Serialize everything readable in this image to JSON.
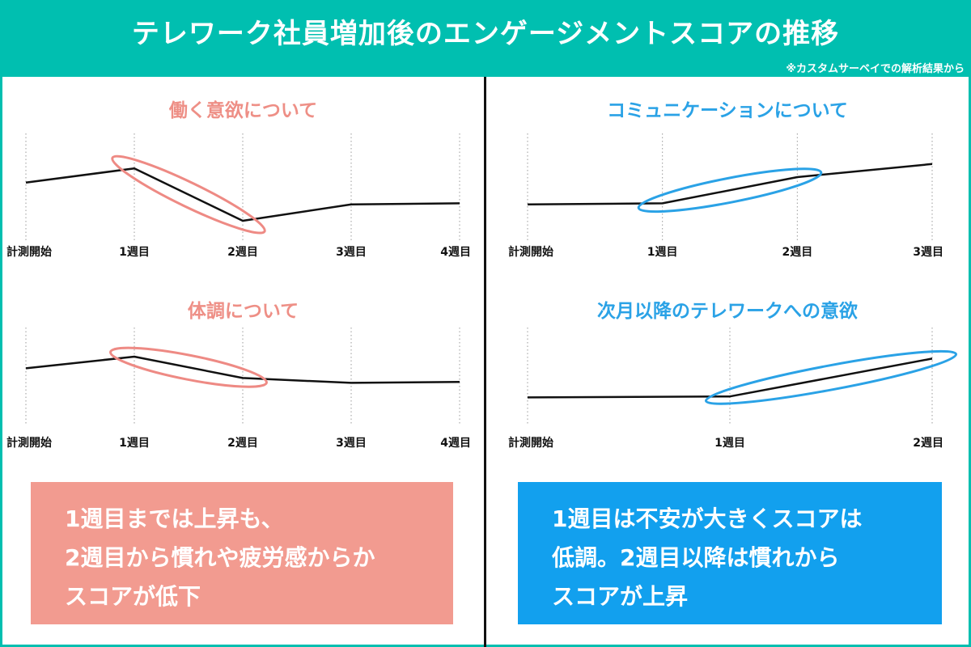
{
  "header": {
    "title": "テレワーク社員増加後のエンゲージメントスコアの推移",
    "note": "※カスタムサーベイでの解析結果から"
  },
  "colors": {
    "teal": "#00bfb0",
    "pink_title": "#ee8f86",
    "pink_box": "#f29b90",
    "pink_ellipse": "#ee8a84",
    "blue_title": "#2aa2e6",
    "blue_box": "#12a0ee",
    "blue_ellipse": "#2aa2e6",
    "line": "#111111"
  },
  "chart_data": [
    {
      "type": "line",
      "title": "働く意欲について",
      "categories": [
        "計測開始",
        "1週目",
        "2週目",
        "3週目",
        "4週目"
      ],
      "values": [
        55,
        68,
        20,
        35,
        36
      ],
      "ylim": [
        0,
        100
      ],
      "highlight": [
        1,
        2
      ],
      "theme": "pink"
    },
    {
      "type": "line",
      "title": "コミュニケーションについて",
      "categories": [
        "計測開始",
        "1週目",
        "2週目",
        "3週目"
      ],
      "values": [
        35,
        36,
        60,
        72
      ],
      "ylim": [
        0,
        100
      ],
      "highlight": [
        1,
        2
      ],
      "theme": "blue"
    },
    {
      "type": "line",
      "title": "体調について",
      "categories": [
        "計測開始",
        "1週目",
        "2週目",
        "3週目",
        "4週目"
      ],
      "values": [
        58,
        70,
        48,
        43,
        44
      ],
      "ylim": [
        0,
        100
      ],
      "highlight": [
        1,
        2
      ],
      "theme": "pink"
    },
    {
      "type": "line",
      "title": "次月以降のテレワークへの意欲",
      "categories": [
        "計測開始",
        "1週目",
        "2週目"
      ],
      "values": [
        28,
        29,
        68
      ],
      "ylim": [
        0,
        100
      ],
      "highlight": [
        1,
        2
      ],
      "theme": "blue"
    }
  ],
  "summaries": {
    "left": {
      "lines": [
        "1週目までは上昇も、",
        "2週目から慣れや疲労感からか",
        "スコアが低下"
      ]
    },
    "right": {
      "lines": [
        "1週目は不安が大きくスコアは",
        "低調。2週目以降は慣れから",
        "スコアが上昇"
      ]
    }
  }
}
